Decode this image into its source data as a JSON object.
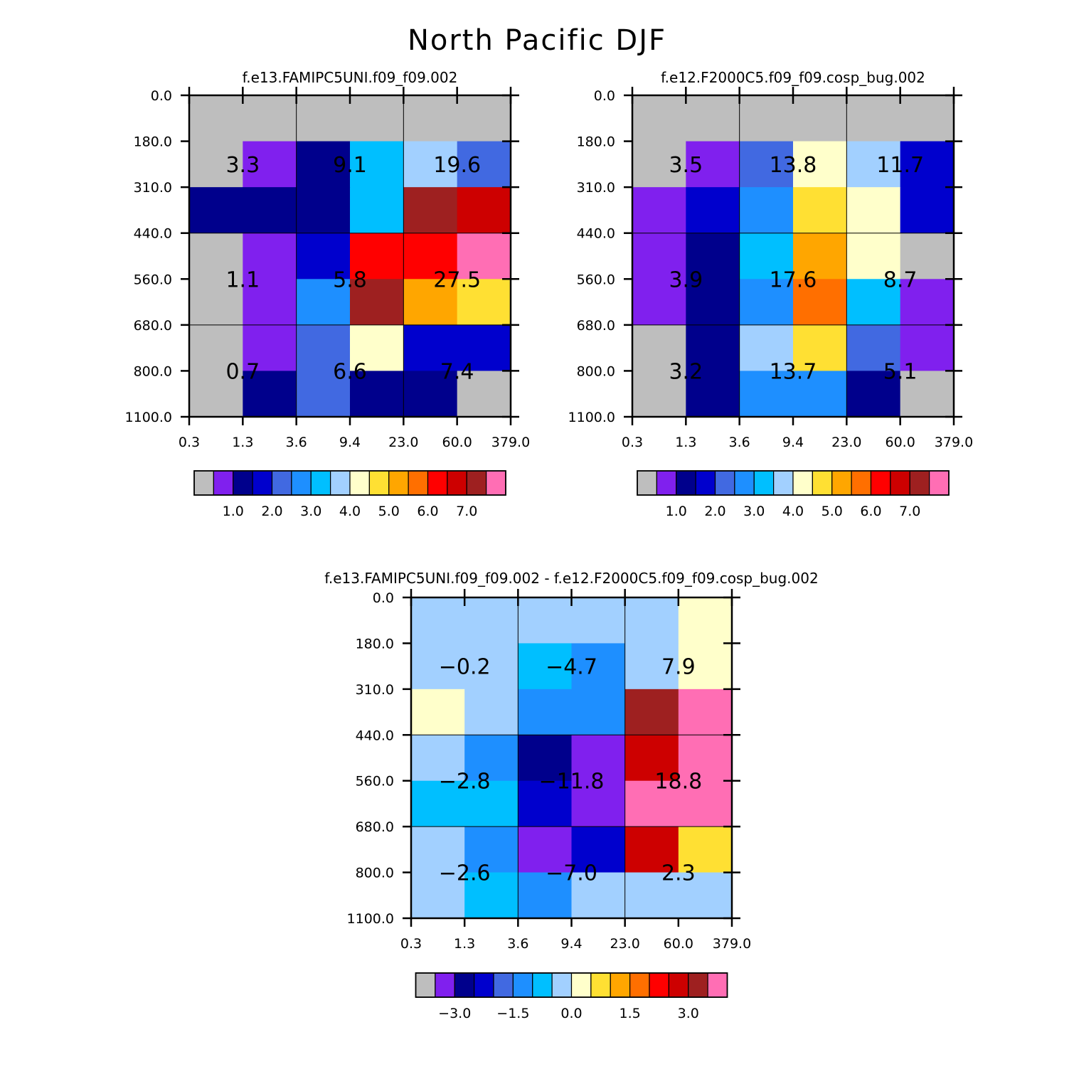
{
  "title": "North Pacific DJF",
  "chart_data": [
    {
      "type": "heatmap",
      "title": "f.e13.FAMIPC5UNI.f09_f09.002",
      "x_edges": [
        "0.3",
        "1.3",
        "3.6",
        "9.4",
        "23.0",
        "60.0",
        "379.0"
      ],
      "y_edges": [
        "0.0",
        "180.0",
        "310.0",
        "440.0",
        "560.0",
        "680.0",
        "800.0",
        "1100.0"
      ],
      "cells": [
        [
          0,
          0,
          0,
          0,
          0,
          0
        ],
        [
          0,
          1,
          2,
          6,
          7,
          4
        ],
        [
          2,
          2,
          2,
          6,
          14,
          13
        ],
        [
          0,
          1,
          3,
          12,
          12,
          15
        ],
        [
          0,
          1,
          5,
          14,
          10,
          9
        ],
        [
          0,
          1,
          4,
          8,
          3,
          3
        ],
        [
          0,
          2,
          4,
          2,
          2,
          0
        ]
      ],
      "group_values": [
        [
          "3.3",
          "9.1",
          "19.6"
        ],
        [
          "1.1",
          "5.8",
          "27.5"
        ],
        [
          "0.7",
          "6.6",
          "7.4"
        ]
      ],
      "colorbar": {
        "ticks": [
          "1.0",
          "2.0",
          "3.0",
          "4.0",
          "5.0",
          "6.0",
          "7.0"
        ],
        "first_tick_box": 1,
        "tick_step": 2
      }
    },
    {
      "type": "heatmap",
      "title": "f.e12.F2000C5.f09_f09.cosp_bug.002",
      "x_edges": [
        "0.3",
        "1.3",
        "3.6",
        "9.4",
        "23.0",
        "60.0",
        "379.0"
      ],
      "y_edges": [
        "0.0",
        "180.0",
        "310.0",
        "440.0",
        "560.0",
        "680.0",
        "800.0",
        "1100.0"
      ],
      "cells": [
        [
          0,
          0,
          0,
          0,
          0,
          0
        ],
        [
          0,
          1,
          4,
          8,
          7,
          3
        ],
        [
          1,
          3,
          5,
          9,
          8,
          3
        ],
        [
          1,
          2,
          6,
          10,
          8,
          0
        ],
        [
          1,
          2,
          5,
          11,
          6,
          1
        ],
        [
          0,
          2,
          7,
          9,
          4,
          1
        ],
        [
          0,
          2,
          5,
          5,
          2,
          0
        ]
      ],
      "group_values": [
        [
          "3.5",
          "13.8",
          "11.7"
        ],
        [
          "3.9",
          "17.6",
          "8.7"
        ],
        [
          "3.2",
          "13.7",
          "5.1"
        ]
      ],
      "colorbar": {
        "ticks": [
          "1.0",
          "2.0",
          "3.0",
          "4.0",
          "5.0",
          "6.0",
          "7.0"
        ],
        "first_tick_box": 1,
        "tick_step": 2
      }
    },
    {
      "type": "heatmap",
      "title": "f.e13.FAMIPC5UNI.f09_f09.002 - f.e12.F2000C5.f09_f09.cosp_bug.002",
      "x_edges": [
        "0.3",
        "1.3",
        "3.6",
        "9.4",
        "23.0",
        "60.0",
        "379.0"
      ],
      "y_edges": [
        "0.0",
        "180.0",
        "310.0",
        "440.0",
        "560.0",
        "680.0",
        "800.0",
        "1100.0"
      ],
      "cells": [
        [
          7,
          7,
          7,
          7,
          7,
          8
        ],
        [
          7,
          7,
          6,
          5,
          7,
          8
        ],
        [
          8,
          7,
          5,
          5,
          14,
          15
        ],
        [
          7,
          5,
          2,
          1,
          13,
          15
        ],
        [
          6,
          6,
          3,
          1,
          15,
          15
        ],
        [
          7,
          5,
          1,
          3,
          13,
          9
        ],
        [
          7,
          6,
          5,
          7,
          7,
          7
        ]
      ],
      "group_values": [
        [
          "-0.2",
          "-4.7",
          "7.9"
        ],
        [
          "-2.8",
          "-11.8",
          "18.8"
        ],
        [
          "-2.6",
          "-7.0",
          "2.3"
        ]
      ],
      "colorbar": {
        "ticks": [
          "-3.0",
          "-1.5",
          "0.0",
          "1.5",
          "3.0"
        ],
        "first_tick_box": 1,
        "tick_step": 3
      }
    }
  ],
  "palette": [
    "#bebebe",
    "#8020ee",
    "#00008c",
    "#0000cd",
    "#4169e1",
    "#1e8fff",
    "#00bfff",
    "#a2d0ff",
    "#ffffcb",
    "#ffe033",
    "#ffa600",
    "#ff6f00",
    "#ff0000",
    "#cd0000",
    "#9e2020",
    "#ff6eb4"
  ]
}
